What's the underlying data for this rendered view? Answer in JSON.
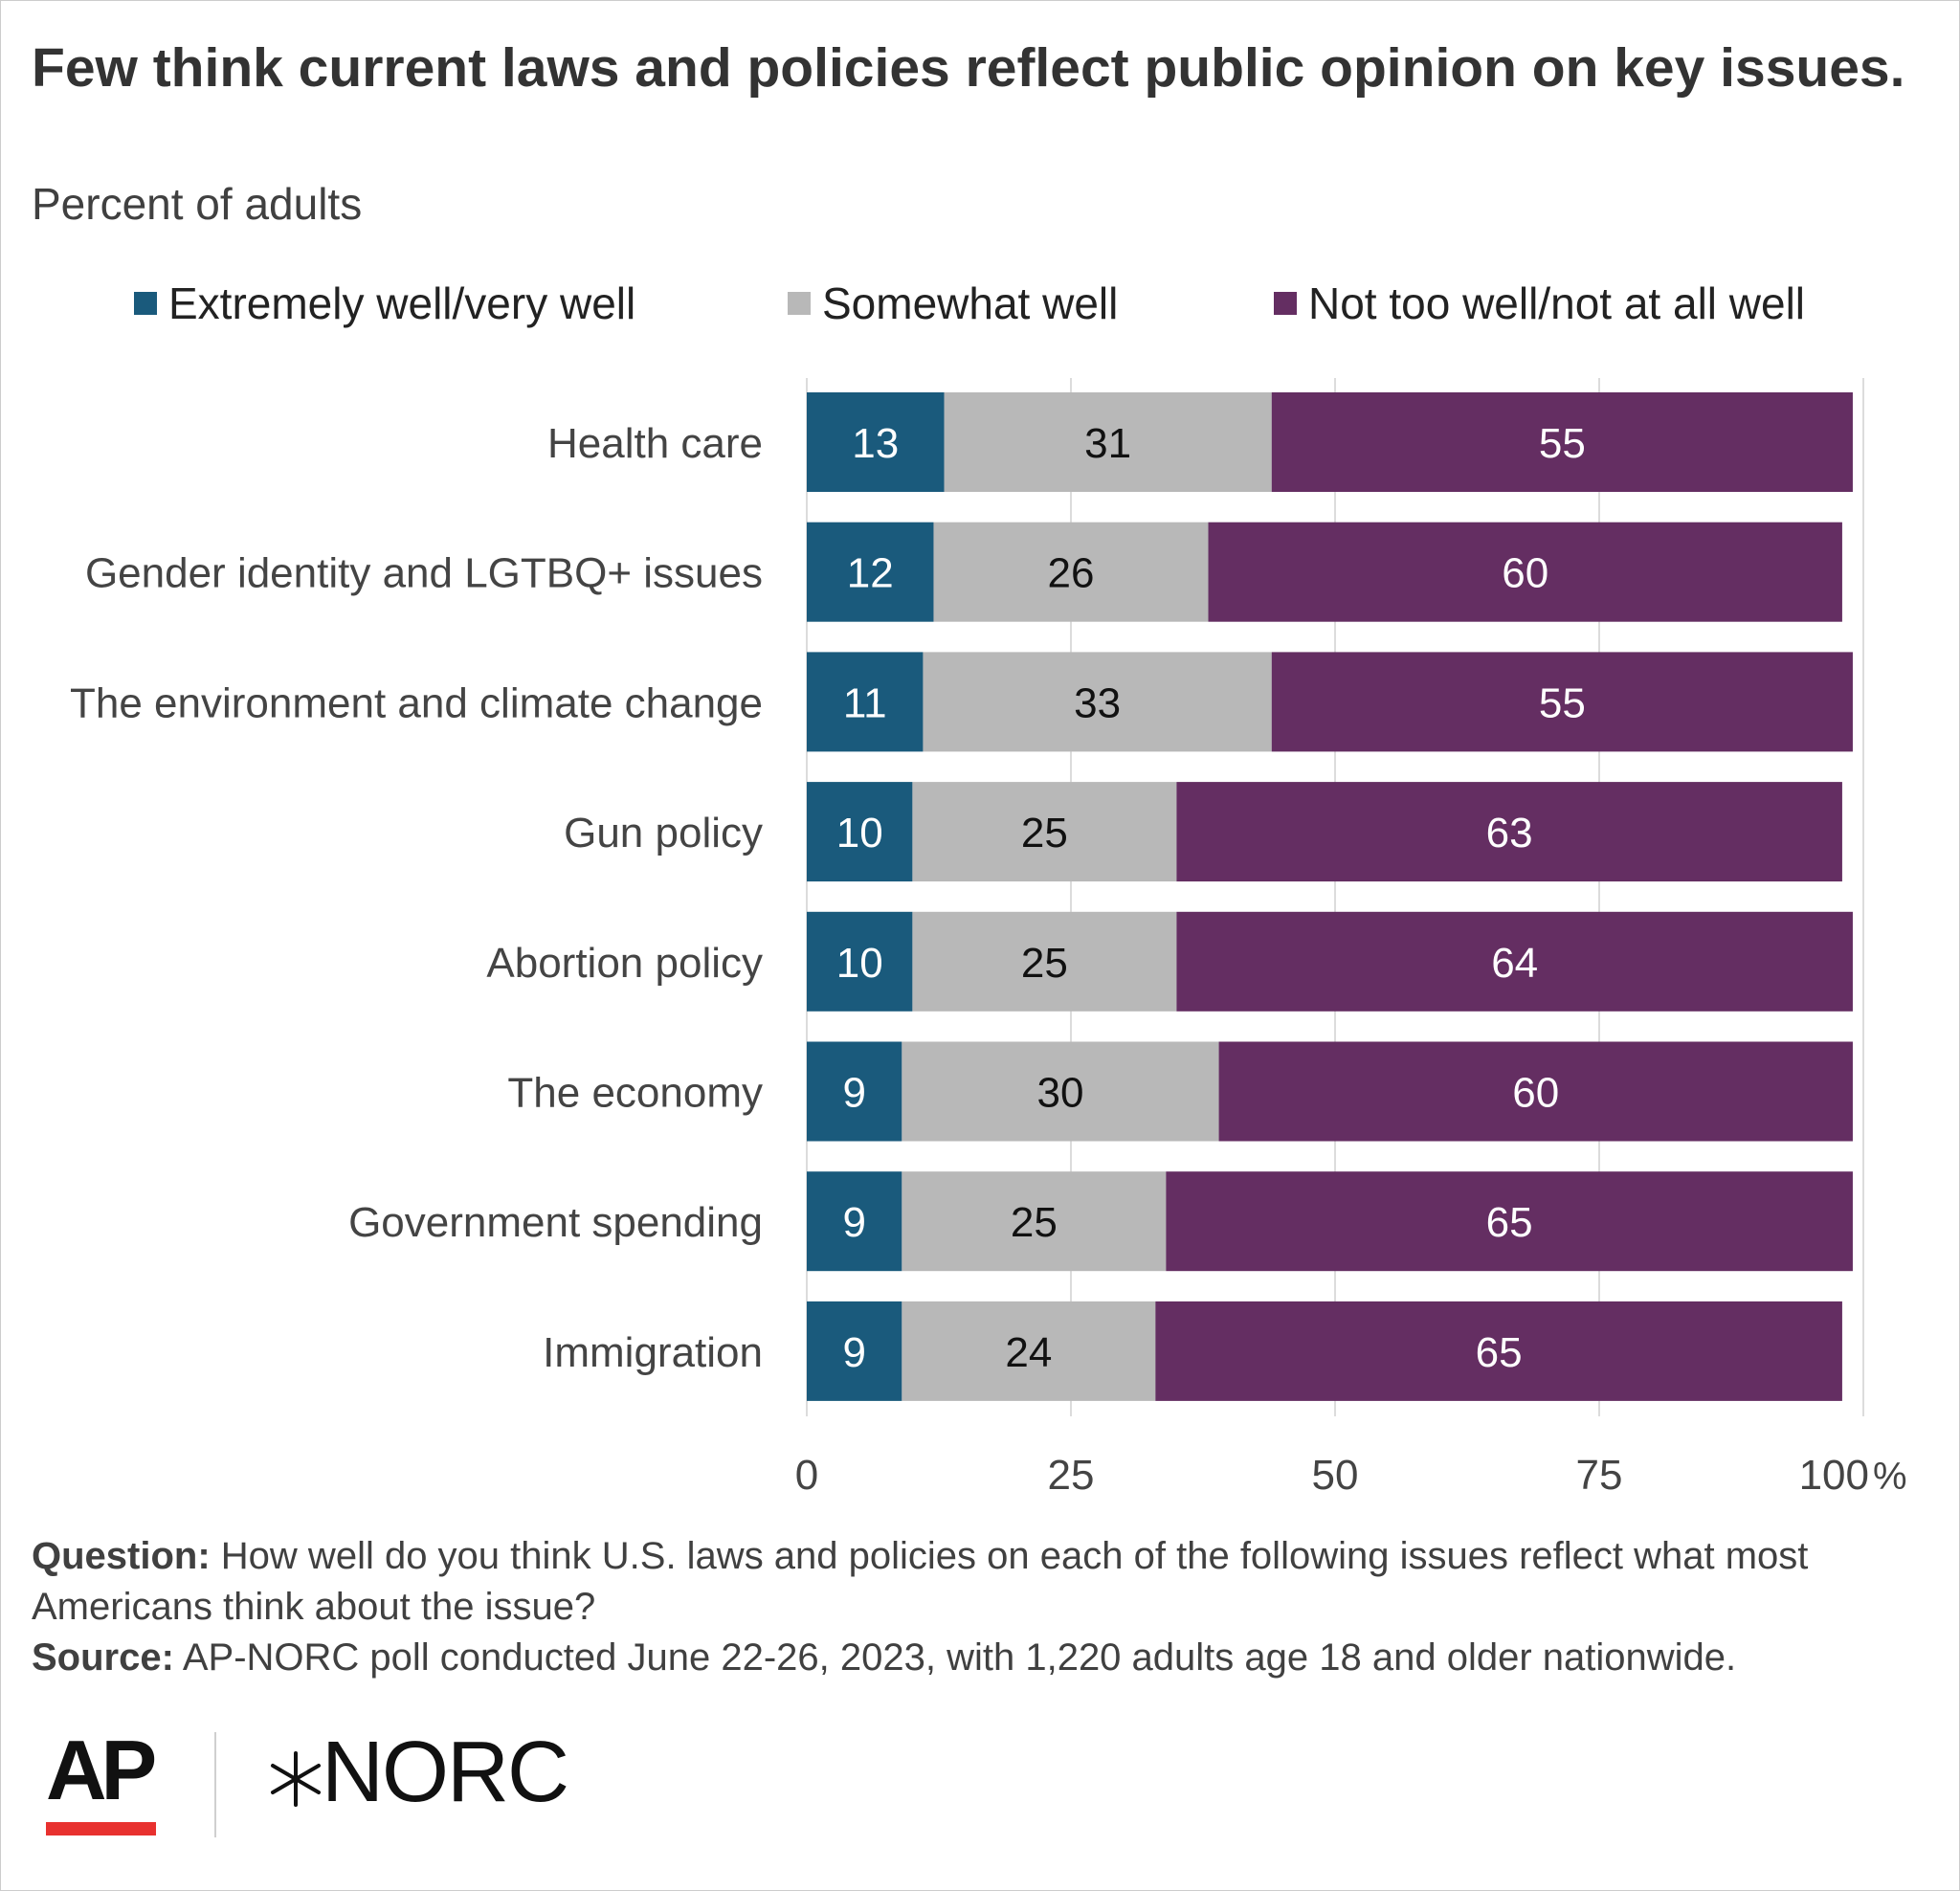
{
  "title": "Few think current laws and policies reflect public opinion on key issues.",
  "subtitle": "Percent of adults",
  "colors": {
    "extremely": "#1a5a7c",
    "somewhat": "#b8b8b8",
    "not_too": "#642e62",
    "ap_red": "#e8312f"
  },
  "chart_data": {
    "type": "bar",
    "orientation": "horizontal",
    "stacked": true,
    "categories": [
      "Health care",
      "Gender identity and LGTBQ+ issues",
      "The environment and climate change",
      "Gun policy",
      "Abortion policy",
      "The economy",
      "Government spending",
      "Immigration"
    ],
    "series": [
      {
        "name": "Extremely well/very well",
        "values": [
          13,
          12,
          11,
          10,
          10,
          9,
          9,
          9
        ]
      },
      {
        "name": "Somewhat well",
        "values": [
          31,
          26,
          33,
          25,
          25,
          30,
          25,
          24
        ]
      },
      {
        "name": "Not too well/not at all well",
        "values": [
          55,
          60,
          55,
          63,
          64,
          60,
          65,
          65
        ]
      }
    ],
    "x_ticks": [
      "0",
      "25",
      "50",
      "75",
      "100"
    ],
    "x_unit": "%",
    "xlim": [
      0,
      100
    ],
    "grid": true,
    "legend_position": "top"
  },
  "notes": {
    "question_label": "Question:",
    "question_text": "How well do you think U.S. laws and policies on each of the following issues reflect what most Americans think about the issue?",
    "source_label": "Source:",
    "source_text": "AP-NORC poll conducted June 22-26, 2023, with 1,220 adults age 18 and older nationwide."
  },
  "logos": {
    "ap": "AP",
    "norc": "NORC"
  }
}
